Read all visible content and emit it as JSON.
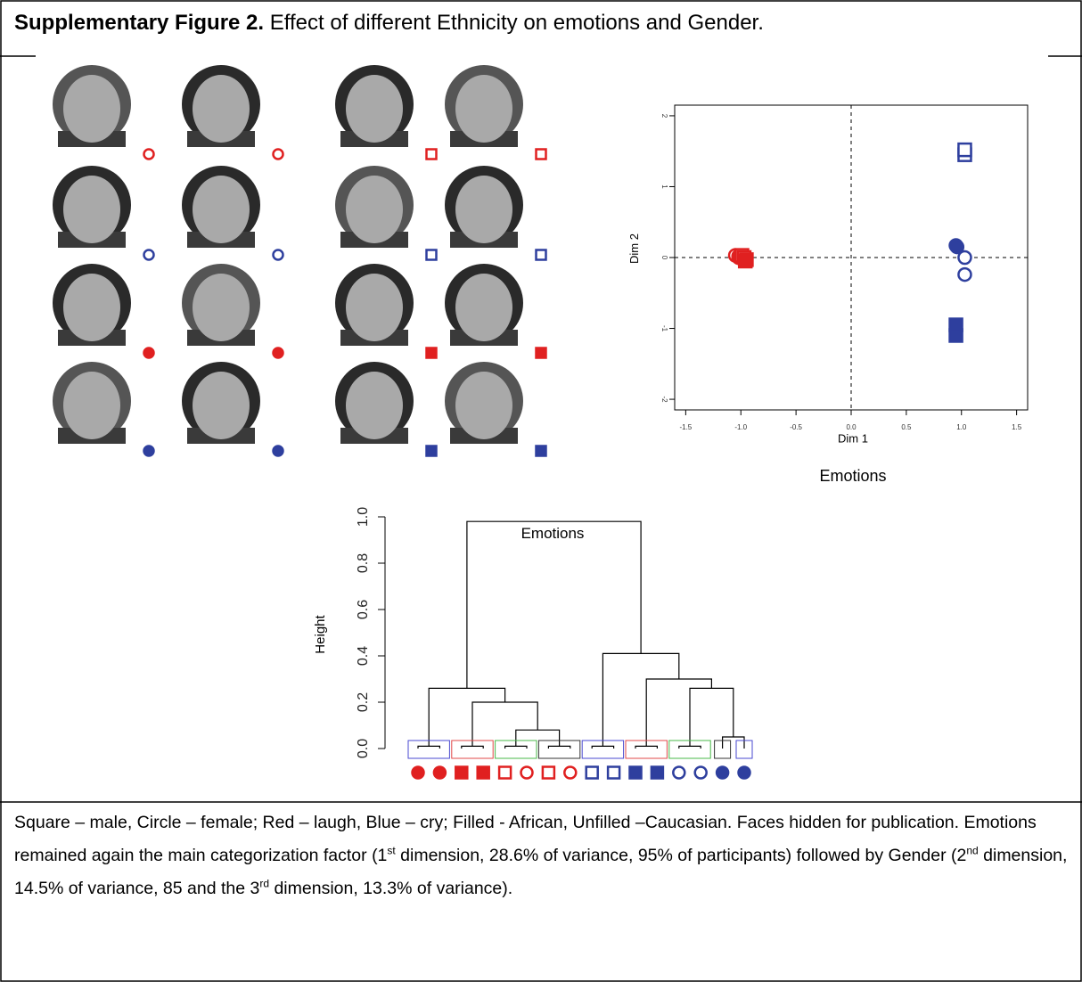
{
  "header": {
    "label": "Supplementary Figure 2.",
    "title": "Effect of different Ethnicity on emotions and Gender."
  },
  "scatter": {
    "type": "scatter",
    "title": "Emotions",
    "x_label": "Dim 1",
    "y_label": "Dim 2",
    "xlim": [
      -1.6,
      1.6
    ],
    "ylim": [
      -2.15,
      2.15
    ],
    "xticks": [
      -1.5,
      {
        "value": -1,
        "label": "-1.0"
      },
      -0.5,
      {
        "value": 0,
        "label": "0.0"
      },
      0.5,
      {
        "value": 1,
        "label": "1.0"
      },
      1.5
    ],
    "yticks": [
      -2,
      -1,
      0,
      1,
      2
    ],
    "reference_lines": true,
    "series": [
      {
        "color": "#e02020",
        "shape": "circle",
        "filled": false,
        "x": [
          -1.05,
          -1.02
        ],
        "y": [
          0.03,
          0.02
        ]
      },
      {
        "color": "#e02020",
        "shape": "circle",
        "filled": true,
        "x": [
          -1.02,
          -1.0
        ],
        "y": [
          0.0,
          0.02
        ]
      },
      {
        "color": "#e02020",
        "shape": "square",
        "filled": false,
        "x": [
          -0.99,
          -0.97
        ],
        "y": [
          0.03,
          0.0
        ]
      },
      {
        "color": "#e02020",
        "shape": "square",
        "filled": true,
        "x": [
          -0.96,
          -0.95
        ],
        "y": [
          -0.05,
          -0.03
        ]
      },
      {
        "color": "#2e3f9e",
        "shape": "square",
        "filled": false,
        "x": [
          1.03,
          1.03
        ],
        "y": [
          1.45,
          1.52
        ]
      },
      {
        "color": "#2e3f9e",
        "shape": "circle",
        "filled": true,
        "x": [
          0.95,
          0.96
        ],
        "y": [
          0.17,
          0.15
        ]
      },
      {
        "color": "#2e3f9e",
        "shape": "circle",
        "filled": false,
        "x": [
          1.03,
          1.03
        ],
        "y": [
          0.0,
          -0.24
        ]
      },
      {
        "color": "#2e3f9e",
        "shape": "square",
        "filled": true,
        "x": [
          0.95,
          0.95
        ],
        "y": [
          -0.95,
          -1.1
        ]
      }
    ]
  },
  "dendrogram": {
    "type": "dendrogram",
    "title": "Emotions",
    "y_label": "Height",
    "ylim": [
      0,
      1
    ],
    "yticks": [
      {
        "value": 0,
        "label": "0.0"
      },
      0.2,
      0.4,
      0.6,
      0.8,
      {
        "value": 1,
        "label": "1.0"
      }
    ],
    "merge": [
      [
        -1,
        -2,
        0.01
      ],
      [
        -3,
        -4,
        0.01
      ],
      [
        -5,
        -6,
        0.01
      ],
      [
        -7,
        -8,
        0.01
      ],
      [
        -9,
        -10,
        0.01
      ],
      [
        -11,
        -12,
        0.01
      ],
      [
        -13,
        -14,
        0.01
      ],
      [
        -15,
        -16,
        0.05
      ],
      [
        3,
        4,
        0.08
      ],
      [
        2,
        9,
        0.2
      ],
      [
        1,
        10,
        0.26
      ],
      [
        7,
        8,
        0.26
      ],
      [
        6,
        12,
        0.3
      ],
      [
        5,
        13,
        0.41
      ],
      [
        11,
        14,
        0.98
      ]
    ],
    "leaves": [
      {
        "color": "#e02020",
        "shape": "circle",
        "filled": true
      },
      {
        "color": "#e02020",
        "shape": "circle",
        "filled": true
      },
      {
        "color": "#e02020",
        "shape": "square",
        "filled": true
      },
      {
        "color": "#e02020",
        "shape": "square",
        "filled": true
      },
      {
        "color": "#e02020",
        "shape": "square",
        "filled": false
      },
      {
        "color": "#e02020",
        "shape": "circle",
        "filled": false
      },
      {
        "color": "#e02020",
        "shape": "square",
        "filled": false
      },
      {
        "color": "#e02020",
        "shape": "circle",
        "filled": false
      },
      {
        "color": "#2e3f9e",
        "shape": "square",
        "filled": false
      },
      {
        "color": "#2e3f9e",
        "shape": "square",
        "filled": false
      },
      {
        "color": "#2e3f9e",
        "shape": "square",
        "filled": true
      },
      {
        "color": "#2e3f9e",
        "shape": "square",
        "filled": true
      },
      {
        "color": "#2e3f9e",
        "shape": "circle",
        "filled": false
      },
      {
        "color": "#2e3f9e",
        "shape": "circle",
        "filled": false
      },
      {
        "color": "#2e3f9e",
        "shape": "circle",
        "filled": true
      },
      {
        "color": "#2e3f9e",
        "shape": "circle",
        "filled": true
      }
    ]
  },
  "caption": {
    "parts": [
      "Square – male, Circle – female;  Red – laugh, Blue – cry; Filled - African, Unfilled –Caucasian. Faces hidden for publication. Emotions remained again the main categorization factor (1",
      "st",
      " dimension, 28.6% of variance, 95% of participants) followed by Gender (2",
      "nd",
      " dimension, 14.5% of variance, 85 and the 3",
      "rd",
      " dimension, 13.3% of variance)."
    ]
  }
}
